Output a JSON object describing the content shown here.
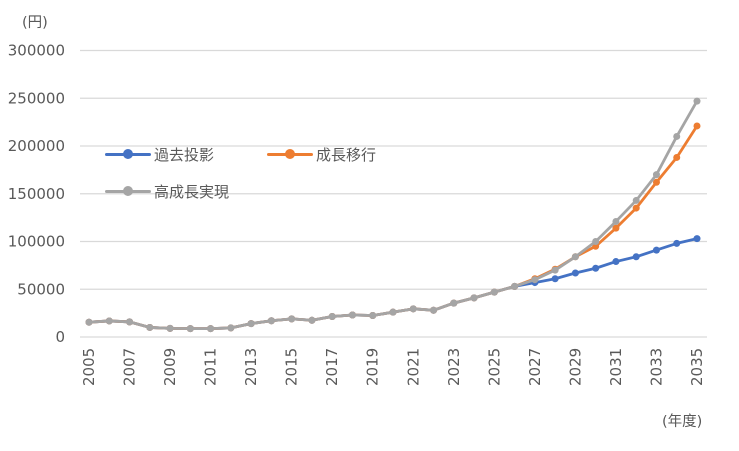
{
  "chart_data": {
    "type": "line",
    "title": "",
    "y_axis_title": "(円)",
    "x_axis_title": "(年度)",
    "x": [
      2005,
      2006,
      2007,
      2008,
      2009,
      2010,
      2011,
      2012,
      2013,
      2014,
      2015,
      2016,
      2017,
      2018,
      2019,
      2020,
      2021,
      2022,
      2023,
      2024,
      2025,
      2026,
      2027,
      2028,
      2029,
      2030,
      2031,
      2032,
      2033,
      2034,
      2035
    ],
    "x_tick_labels": [
      "2005",
      "2007",
      "2009",
      "2011",
      "2013",
      "2015",
      "2017",
      "2019",
      "2021",
      "2023",
      "2025",
      "2027",
      "2029",
      "2031",
      "2033",
      "2035"
    ],
    "y_ticks": [
      0,
      50000,
      100000,
      150000,
      200000,
      250000,
      300000
    ],
    "ylim": [
      0,
      300000
    ],
    "grid": true,
    "legend_position": "inside-top-left",
    "colors": {
      "gridline": "#D9D9D9",
      "tick_text": "#595959"
    },
    "series": [
      {
        "name": "過去投影",
        "color": "#4472C4",
        "values": [
          15500,
          16800,
          15800,
          10000,
          9000,
          8800,
          8800,
          9500,
          14000,
          17000,
          19000,
          17500,
          21500,
          23000,
          22500,
          26000,
          29500,
          28000,
          35500,
          41000,
          47000,
          53000,
          57000,
          61000,
          67000,
          72000,
          79000,
          84000,
          91000,
          98000,
          103000
        ]
      },
      {
        "name": "成長移行",
        "color": "#ED7D31",
        "values": [
          15500,
          16800,
          15800,
          10000,
          9000,
          8800,
          8800,
          9500,
          14000,
          17000,
          19000,
          17500,
          21500,
          23000,
          22500,
          26000,
          29500,
          28000,
          35500,
          41000,
          47000,
          53000,
          61000,
          71000,
          84000,
          95000,
          114000,
          135000,
          162000,
          188000,
          221000
        ]
      },
      {
        "name": "高成長実現",
        "color": "#A5A5A5",
        "values": [
          15500,
          16800,
          15800,
          10000,
          9000,
          8800,
          8800,
          9500,
          14000,
          17000,
          19000,
          17500,
          21500,
          23000,
          22500,
          26000,
          29500,
          28000,
          35500,
          41000,
          47000,
          53000,
          60000,
          70000,
          84000,
          100000,
          121000,
          143000,
          170000,
          210000,
          247000
        ]
      }
    ]
  }
}
